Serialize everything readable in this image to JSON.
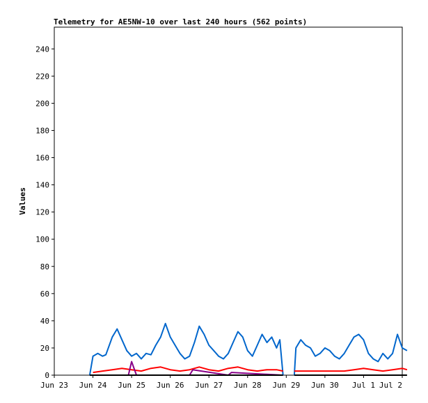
{
  "chart_data": {
    "type": "line",
    "title": "Telemetry for AE5NW-10 over last 240 hours (562 points)",
    "xlabel": "",
    "ylabel": "Values",
    "x_ticks": [
      "Jun 23",
      "Jun 24",
      "Jun 25",
      "Jun 26",
      "Jun 27",
      "Jun 28",
      "Jun 29",
      "Jun 30",
      "Jul 1",
      "Jul 2"
    ],
    "xlim": [
      "Jun 23",
      "Jul 2"
    ],
    "y_ticks": [
      0,
      20,
      40,
      60,
      80,
      100,
      120,
      140,
      160,
      180,
      200,
      220,
      240
    ],
    "ylim": [
      0,
      256
    ],
    "grid": false,
    "colors": {
      "blue": "#0066cc",
      "red": "#ff0000",
      "purple": "#880088",
      "black": "#000000"
    },
    "series": [
      {
        "color": "#0066cc",
        "segments": [
          {
            "x": [
              "Jun 23 22:00",
              "Jun 24 00:00",
              "Jun 24 03:00",
              "Jun 24 06:00",
              "Jun 24 08:00",
              "Jun 24 12:00",
              "Jun 24 15:00",
              "Jun 24 18:00",
              "Jun 24 21:00",
              "Jun 25 00:00",
              "Jun 25 03:00",
              "Jun 25 06:00",
              "Jun 25 09:00",
              "Jun 25 12:00",
              "Jun 25 15:00",
              "Jun 25 18:00",
              "Jun 25 21:00",
              "Jun 26 00:00",
              "Jun 26 03:00",
              "Jun 26 06:00",
              "Jun 26 09:00",
              "Jun 26 12:00",
              "Jun 26 15:00",
              "Jun 26 18:00",
              "Jun 26 21:00",
              "Jun 27 00:00",
              "Jun 27 03:00",
              "Jun 27 06:00",
              "Jun 27 09:00",
              "Jun 27 12:00",
              "Jun 27 15:00",
              "Jun 27 18:00",
              "Jun 27 21:00",
              "Jun 28 00:00",
              "Jun 28 03:00",
              "Jun 28 06:00",
              "Jun 28 09:00",
              "Jun 28 12:00",
              "Jun 28 15:00",
              "Jun 28 18:00",
              "Jun 28 20:00",
              "Jun 28 22:00"
            ],
            "y": [
              0,
              14,
              16,
              14,
              15,
              28,
              34,
              26,
              18,
              14,
              16,
              12,
              16,
              15,
              22,
              28,
              38,
              28,
              22,
              16,
              12,
              14,
              24,
              36,
              30,
              22,
              18,
              14,
              12,
              16,
              24,
              32,
              28,
              18,
              14,
              22,
              30,
              24,
              28,
              20,
              26,
              0
            ]
          },
          {
            "x": [
              "Jun 29 05:00",
              "Jun 29 06:00",
              "Jun 29 09:00",
              "Jun 29 12:00",
              "Jun 29 15:00",
              "Jun 29 18:00",
              "Jun 29 21:00",
              "Jun 30 00:00",
              "Jun 30 03:00",
              "Jun 30 06:00",
              "Jun 30 09:00",
              "Jun 30 12:00",
              "Jun 30 15:00",
              "Jun 30 18:00",
              "Jun 30 21:00",
              "Jul 1 00:00",
              "Jul 1 03:00",
              "Jul 1 06:00",
              "Jul 1 09:00",
              "Jul 1 12:00",
              "Jul 1 15:00",
              "Jul 1 18:00",
              "Jul 1 21:00",
              "Jul 2 00:00",
              "Jul 2 03:00"
            ],
            "y": [
              0,
              20,
              26,
              22,
              20,
              14,
              16,
              20,
              18,
              14,
              12,
              16,
              22,
              28,
              30,
              26,
              16,
              12,
              10,
              16,
              12,
              16,
              30,
              20,
              18
            ]
          }
        ]
      },
      {
        "color": "#ff0000",
        "segments": [
          {
            "x": [
              "Jun 24 00:00",
              "Jun 24 06:00",
              "Jun 24 12:00",
              "Jun 24 18:00",
              "Jun 25 00:00",
              "Jun 25 06:00",
              "Jun 25 12:00",
              "Jun 25 18:00",
              "Jun 26 00:00",
              "Jun 26 06:00",
              "Jun 26 12:00",
              "Jun 26 18:00",
              "Jun 27 00:00",
              "Jun 27 06:00",
              "Jun 27 12:00",
              "Jun 27 18:00",
              "Jun 28 00:00",
              "Jun 28 06:00",
              "Jun 28 12:00",
              "Jun 28 18:00",
              "Jun 28 22:00"
            ],
            "y": [
              2,
              3,
              4,
              5,
              4,
              3,
              5,
              6,
              4,
              3,
              4,
              6,
              4,
              3,
              5,
              6,
              4,
              3,
              4,
              4,
              3
            ]
          },
          {
            "x": [
              "Jun 29 05:00",
              "Jun 29 12:00",
              "Jun 29 18:00",
              "Jun 30 00:00",
              "Jun 30 06:00",
              "Jun 30 12:00",
              "Jun 30 18:00",
              "Jul 1 00:00",
              "Jul 1 06:00",
              "Jul 1 12:00",
              "Jul 1 18:00",
              "Jul 2 00:00",
              "Jul 2 03:00"
            ],
            "y": [
              3,
              3,
              3,
              3,
              3,
              3,
              4,
              5,
              4,
              3,
              4,
              5,
              4
            ]
          }
        ]
      },
      {
        "color": "#880088",
        "segments": [
          {
            "x": [
              "Jun 24 00:00",
              "Jun 24 12:00",
              "Jun 24 22:00",
              "Jun 25 00:00",
              "Jun 25 03:00",
              "Jun 26 12:00",
              "Jun 26 14:00",
              "Jun 27 12:00",
              "Jun 27 14:00",
              "Jun 28 22:00"
            ],
            "y": [
              0,
              0,
              0,
              10,
              0,
              0,
              4,
              0,
              2,
              0
            ]
          }
        ]
      },
      {
        "color": "#000000",
        "segments": [
          {
            "x": [
              "Jun 23 22:00",
              "Jun 28 22:00"
            ],
            "y": [
              0,
              0
            ]
          },
          {
            "x": [
              "Jun 29 05:00",
              "Jul 2 03:00"
            ],
            "y": [
              0,
              0
            ]
          }
        ]
      }
    ]
  }
}
